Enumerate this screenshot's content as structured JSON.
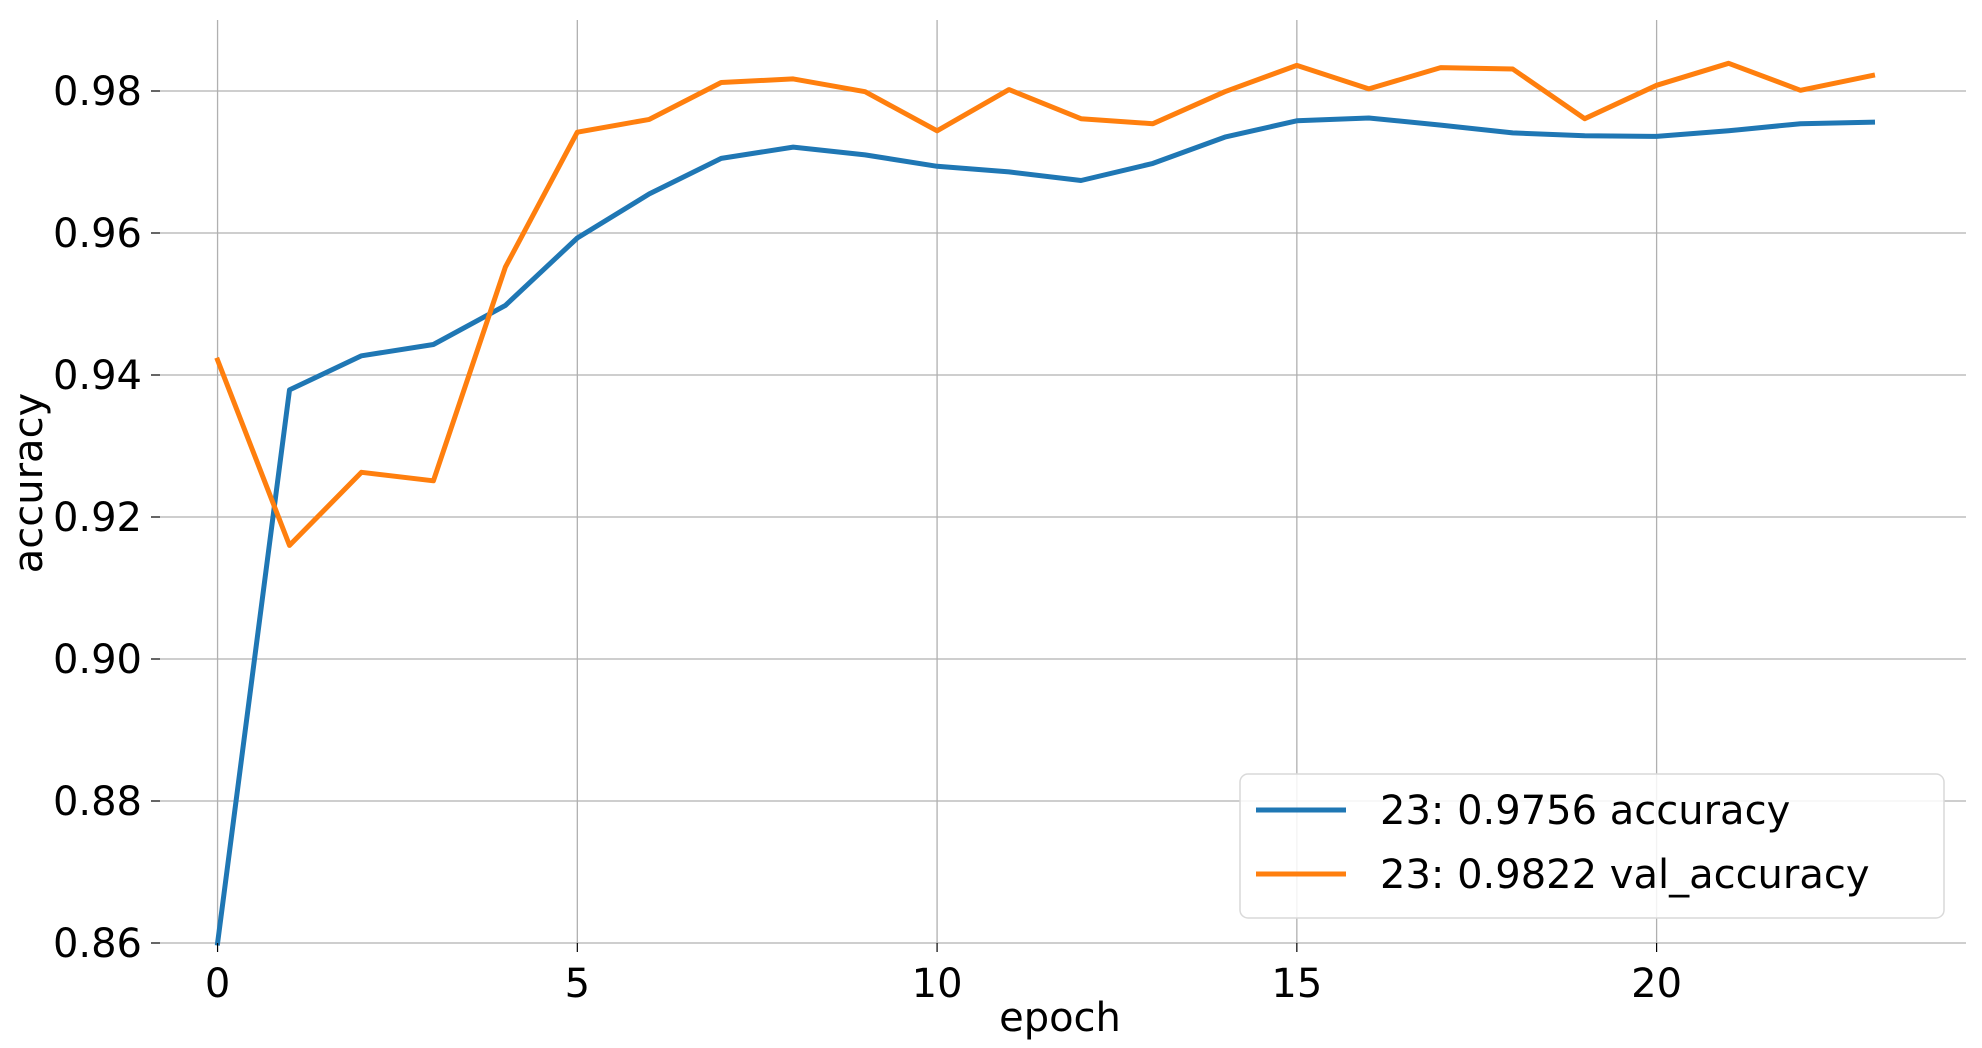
{
  "chart_data": {
    "type": "line",
    "title": "",
    "xlabel": "epoch",
    "ylabel": "accuracy",
    "xlim": [
      -0.8,
      24.3
    ],
    "ylim": [
      0.86,
      0.99
    ],
    "xticks": [
      0,
      5,
      10,
      15,
      20
    ],
    "xtick_labels": [
      "0",
      "5",
      "10",
      "15",
      "20"
    ],
    "yticks": [
      0.86,
      0.88,
      0.9,
      0.92,
      0.94,
      0.96,
      0.98
    ],
    "ytick_labels": [
      "0.86",
      "0.88",
      "0.90",
      "0.92",
      "0.94",
      "0.96",
      "0.98"
    ],
    "grid": true,
    "legend_position": "bottom-right",
    "x": [
      0,
      1,
      2,
      3,
      4,
      5,
      6,
      7,
      8,
      9,
      10,
      11,
      12,
      13,
      14,
      15,
      16,
      17,
      18,
      19,
      20,
      21,
      22,
      23
    ],
    "series": [
      {
        "name": "23: 0.9756 accuracy",
        "color": "#1f77b4",
        "values": [
          0.86,
          0.9379,
          0.9427,
          0.9443,
          0.9498,
          0.9593,
          0.9655,
          0.9705,
          0.9721,
          0.971,
          0.9694,
          0.9686,
          0.9674,
          0.9698,
          0.9735,
          0.9758,
          0.9762,
          0.9752,
          0.9741,
          0.9737,
          0.9736,
          0.9744,
          0.9754,
          0.9756
        ]
      },
      {
        "name": "23: 0.9822 val_accuracy",
        "color": "#ff7f0e",
        "values": [
          0.9421,
          0.916,
          0.9263,
          0.9251,
          0.9552,
          0.9742,
          0.976,
          0.9812,
          0.9817,
          0.9799,
          0.9744,
          0.9802,
          0.9761,
          0.9754,
          0.9799,
          0.9836,
          0.9803,
          0.9833,
          0.9831,
          0.9761,
          0.9808,
          0.9839,
          0.9801,
          0.9822
        ]
      }
    ]
  }
}
